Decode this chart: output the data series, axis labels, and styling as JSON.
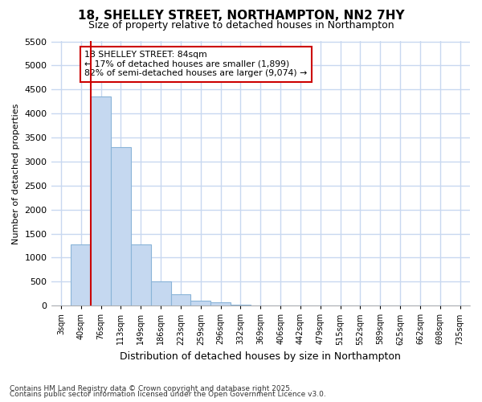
{
  "title_line1": "18, SHELLEY STREET, NORTHAMPTON, NN2 7HY",
  "title_line2": "Size of property relative to detached houses in Northampton",
  "xlabel": "Distribution of detached houses by size in Northampton",
  "ylabel": "Number of detached properties",
  "bar_categories": [
    "3sqm",
    "40sqm",
    "76sqm",
    "113sqm",
    "149sqm",
    "186sqm",
    "223sqm",
    "259sqm",
    "296sqm",
    "332sqm",
    "369sqm",
    "406sqm",
    "442sqm",
    "479sqm",
    "515sqm",
    "552sqm",
    "589sqm",
    "625sqm",
    "662sqm",
    "698sqm",
    "735sqm"
  ],
  "bar_values": [
    0,
    1270,
    4350,
    3300,
    1275,
    500,
    230,
    100,
    70,
    15,
    5,
    0,
    0,
    0,
    0,
    0,
    0,
    0,
    0,
    0,
    0
  ],
  "bar_color": "#c5d8f0",
  "bar_edgecolor": "#8ab4d8",
  "vline_color": "#cc0000",
  "vline_lw": 1.5,
  "vline_index": 2,
  "ylim": [
    0,
    5500
  ],
  "yticks": [
    0,
    500,
    1000,
    1500,
    2000,
    2500,
    3000,
    3500,
    4000,
    4500,
    5000,
    5500
  ],
  "annotation_title": "18 SHELLEY STREET: 84sqm",
  "annotation_line1": "← 17% of detached houses are smaller (1,899)",
  "annotation_line2": "82% of semi-detached houses are larger (9,074) →",
  "annotation_box_edgecolor": "#cc0000",
  "annotation_box_facecolor": "#ffffff",
  "bg_color": "#ffffff",
  "plot_bg_color": "#ffffff",
  "grid_color": "#c8d8f0",
  "footnote1": "Contains HM Land Registry data © Crown copyright and database right 2025.",
  "footnote2": "Contains public sector information licensed under the Open Government Licence v3.0."
}
